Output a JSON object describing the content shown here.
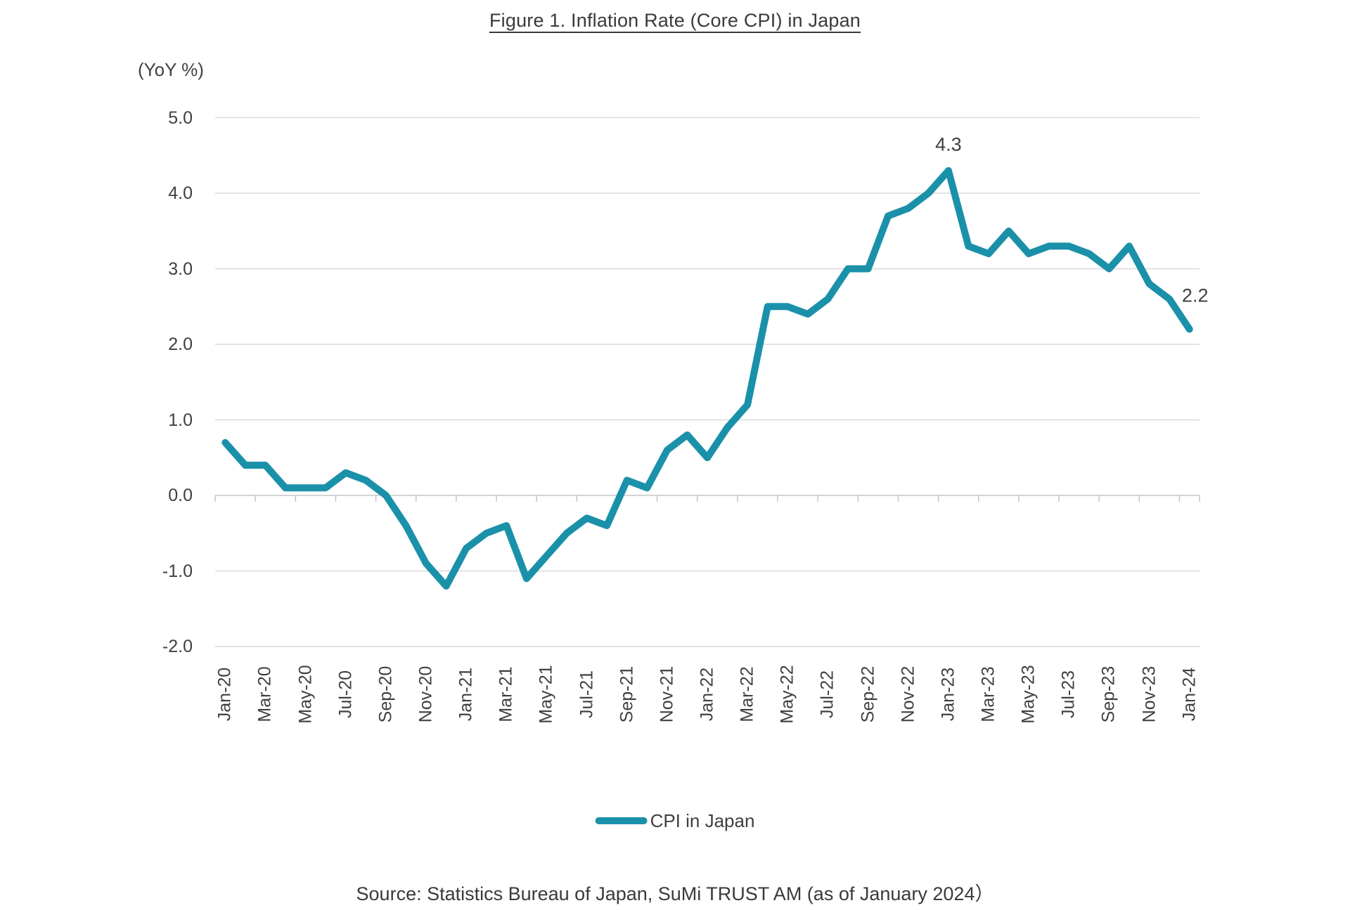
{
  "title": "Figure 1. Inflation Rate (Core CPI) in Japan",
  "y_axis_unit_label": "(YoY %)",
  "legend": {
    "series_label": "CPI in Japan",
    "swatch_color": "#1a91a9"
  },
  "source_note": "Source: Statistics Bureau of Japan, SuMi TRUST AM (as of January 2024）",
  "colors": {
    "line": "#1a91a9",
    "gridline": "#d9d9d9",
    "axis": "#c6c6c6",
    "text": "#404040"
  },
  "chart_data": {
    "type": "line",
    "title": "Figure 1. Inflation Rate (Core CPI) in Japan",
    "xlabel": "",
    "ylabel": "(YoY %)",
    "ylim": [
      -2.0,
      5.0
    ],
    "grid": "horizontal",
    "legend_position": "bottom-center",
    "y_ticks": [
      "5.0",
      "4.0",
      "3.0",
      "2.0",
      "1.0",
      "0.0",
      "-1.0",
      "-2.0"
    ],
    "x_tick_labels": [
      "Jan-20",
      "Mar-20",
      "May-20",
      "Jul-20",
      "Sep-20",
      "Nov-20",
      "Jan-21",
      "Mar-21",
      "May-21",
      "Jul-21",
      "Sep-21",
      "Nov-21",
      "Jan-22",
      "Mar-22",
      "May-22",
      "Jul-22",
      "Sep-22",
      "Nov-22",
      "Jan-23",
      "Mar-23",
      "May-23",
      "Jul-23",
      "Sep-23",
      "Nov-23",
      "Jan-24"
    ],
    "categories": [
      "Jan-20",
      "Feb-20",
      "Mar-20",
      "Apr-20",
      "May-20",
      "Jun-20",
      "Jul-20",
      "Aug-20",
      "Sep-20",
      "Oct-20",
      "Nov-20",
      "Dec-20",
      "Jan-21",
      "Feb-21",
      "Mar-21",
      "Apr-21",
      "May-21",
      "Jun-21",
      "Jul-21",
      "Aug-21",
      "Sep-21",
      "Oct-21",
      "Nov-21",
      "Dec-21",
      "Jan-22",
      "Feb-22",
      "Mar-22",
      "Apr-22",
      "May-22",
      "Jun-22",
      "Jul-22",
      "Aug-22",
      "Sep-22",
      "Oct-22",
      "Nov-22",
      "Dec-22",
      "Jan-23",
      "Feb-23",
      "Mar-23",
      "Apr-23",
      "May-23",
      "Jun-23",
      "Jul-23",
      "Aug-23",
      "Sep-23",
      "Oct-23",
      "Nov-23",
      "Dec-23",
      "Jan-24"
    ],
    "series": [
      {
        "name": "CPI in Japan",
        "color": "#1a91a9",
        "values": [
          0.7,
          0.4,
          0.4,
          0.1,
          0.1,
          0.1,
          0.3,
          0.2,
          0.0,
          -0.4,
          -0.9,
          -1.2,
          -0.7,
          -0.5,
          -0.4,
          -1.1,
          -0.8,
          -0.5,
          -0.3,
          -0.4,
          0.2,
          0.1,
          0.6,
          0.8,
          0.5,
          0.9,
          1.2,
          2.5,
          2.5,
          2.4,
          2.6,
          3.0,
          3.0,
          3.7,
          3.8,
          4.0,
          4.3,
          3.3,
          3.2,
          3.5,
          3.2,
          3.3,
          3.3,
          3.2,
          3.0,
          3.3,
          2.8,
          2.6,
          2.2
        ]
      }
    ],
    "annotations": [
      {
        "label": "4.3",
        "category": "Jan-23"
      },
      {
        "label": "2.2",
        "category": "Jan-24"
      }
    ]
  }
}
